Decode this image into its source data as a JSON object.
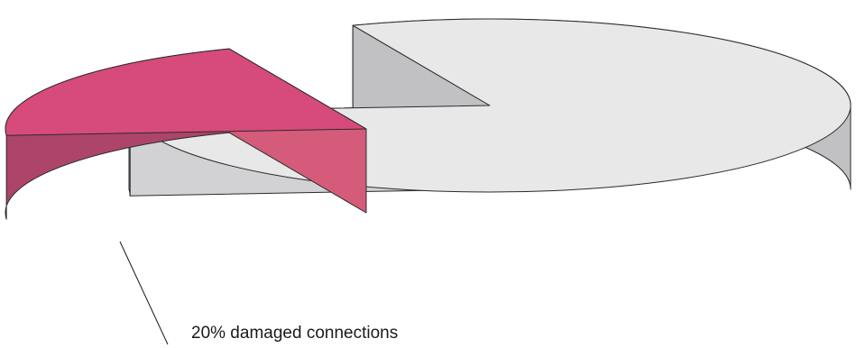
{
  "chart_data": {
    "type": "pie",
    "style": "3d-exploded",
    "slices": [
      {
        "label": "20% damaged connections",
        "value": 20,
        "exploded": true,
        "color": "#d64b7b",
        "side_color_dark": "#ad4469",
        "side_color_light": "#d55b7b"
      },
      {
        "label": "",
        "value": 80,
        "exploded": false,
        "color": "#e8e8e8",
        "side_color_dark": "#c1c1c3",
        "side_color_light": "#d2d2d4"
      }
    ]
  }
}
